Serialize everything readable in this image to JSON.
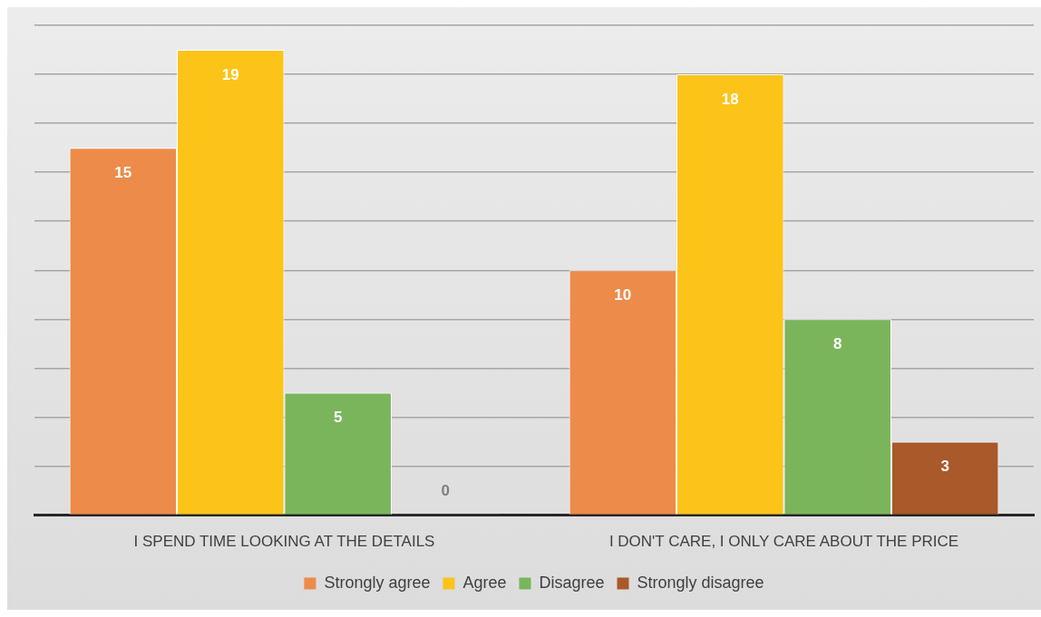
{
  "chart_data": {
    "type": "bar",
    "categories": [
      "I SPEND TIME LOOKING AT THE DETAILS",
      "I DON'T CARE, I ONLY CARE ABOUT THE PRICE"
    ],
    "series": [
      {
        "name": "Strongly agree",
        "color": "#ed8b4a",
        "values": [
          15,
          10
        ]
      },
      {
        "name": "Agree",
        "color": "#fcc419",
        "values": [
          19,
          18
        ]
      },
      {
        "name": "Disagree",
        "color": "#7ab55c",
        "values": [
          5,
          8
        ]
      },
      {
        "name": "Strongly disagree",
        "color": "#a9592a",
        "values": [
          0,
          3
        ]
      }
    ],
    "ylim": [
      0,
      20
    ],
    "yticks": [
      {
        "value": 0,
        "label": null
      },
      {
        "value": 2,
        "label": null
      },
      {
        "value": 4,
        "label": null
      },
      {
        "value": 6,
        "label": null
      },
      {
        "value": 8,
        "label": null
      },
      {
        "value": 10,
        "label": null
      },
      {
        "value": 12,
        "label": null
      },
      {
        "value": 14,
        "label": null
      },
      {
        "value": 16,
        "label": null
      },
      {
        "value": 18,
        "label": null
      },
      {
        "value": 20,
        "label": null
      }
    ],
    "tick_labels": "x",
    "grid": "y",
    "legend": "bottom",
    "data_labels": true
  }
}
